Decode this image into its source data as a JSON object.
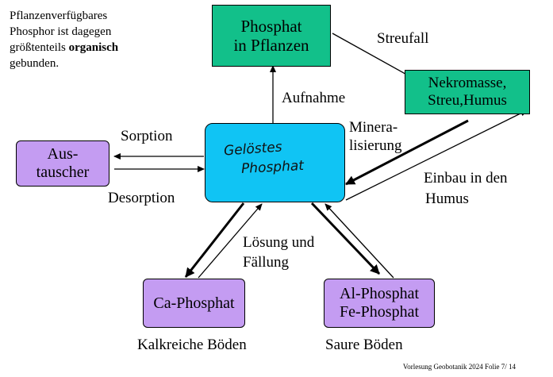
{
  "intro": {
    "line1": "Pflanzenverfügbares",
    "line2": "Phosphor ist dagegen",
    "line3_prefix": "größtenteils ",
    "line3_bold": "organisch",
    "line4": "gebunden."
  },
  "nodes": {
    "plant_phosphate": {
      "line1": "Phosphat",
      "line2": "in Pflanzen"
    },
    "necromass": {
      "line1": "Nekromasse,",
      "line2": "Streu,Humus"
    },
    "dissolved_phosphate": {
      "line1": "Gelöstes",
      "line2": "Phosphat"
    },
    "exchanger": {
      "line1": "Aus-",
      "line2": "tauscher"
    },
    "ca_phosphate": {
      "line1": "Ca-Phosphat"
    },
    "al_fe_phosphate": {
      "line1": "Al-Phosphat",
      "line2": "Fe-Phosphat"
    }
  },
  "labels": {
    "litterfall": "Streufall",
    "uptake": "Aufnahme",
    "sorption": "Sorption",
    "desorption": "Desorption",
    "mineralization_line1": "Minera-",
    "mineralization_line2": "lisierung",
    "humus_incorporation_line1": "Einbau in den",
    "humus_incorporation_line2": "Humus",
    "dissolution_line1": "Lösung und",
    "dissolution_line2": "Fällung",
    "calcareous_soils": "Kalkreiche Böden",
    "acidic_soils": "Saure Böden"
  },
  "footer": "Vorlesung Geobotanik 2024 Folie 7/ 14"
}
